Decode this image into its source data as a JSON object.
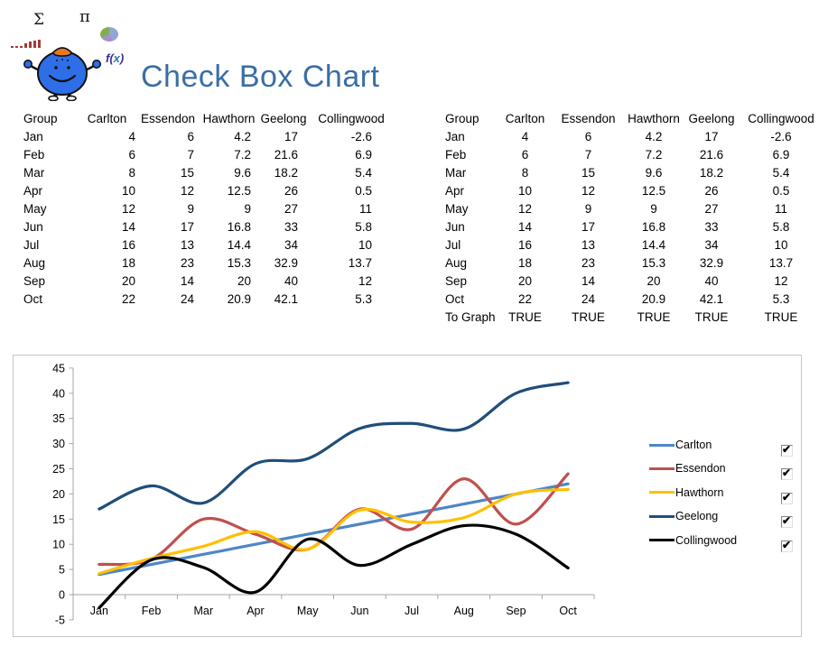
{
  "header": {
    "title": "Check Box Chart"
  },
  "logo": {
    "sigma": "Σ",
    "pi": "π",
    "fx_prefix": "f(",
    "fx_x": "x",
    "fx_suffix": ")"
  },
  "icons": {
    "checkbox_checked_glyph": "✔"
  },
  "tables": {
    "columns": [
      "Group",
      "Carlton",
      "Essendon",
      "Hawthorn",
      "Geelong",
      "Collingwood"
    ],
    "rows": [
      [
        "Jan",
        "4",
        "6",
        "4.2",
        "17",
        "-2.6"
      ],
      [
        "Feb",
        "6",
        "7",
        "7.2",
        "21.6",
        "6.9"
      ],
      [
        "Mar",
        "8",
        "15",
        "9.6",
        "18.2",
        "5.4"
      ],
      [
        "Apr",
        "10",
        "12",
        "12.5",
        "26",
        "0.5"
      ],
      [
        "May",
        "12",
        "9",
        "9",
        "27",
        "11"
      ],
      [
        "Jun",
        "14",
        "17",
        "16.8",
        "33",
        "5.8"
      ],
      [
        "Jul",
        "16",
        "13",
        "14.4",
        "34",
        "10"
      ],
      [
        "Aug",
        "18",
        "23",
        "15.3",
        "32.9",
        "13.7"
      ],
      [
        "Sep",
        "20",
        "14",
        "20",
        "40",
        "12"
      ],
      [
        "Oct",
        "22",
        "24",
        "20.9",
        "42.1",
        "5.3"
      ]
    ],
    "right_extra_row": {
      "label": "To Graph",
      "values": [
        "TRUE",
        "TRUE",
        "TRUE",
        "TRUE",
        "TRUE"
      ]
    }
  },
  "chart_data": {
    "type": "line",
    "smooth": true,
    "x": [
      "Jan",
      "Feb",
      "Mar",
      "Apr",
      "May",
      "Jun",
      "Jul",
      "Aug",
      "Sep",
      "Oct"
    ],
    "series": [
      {
        "name": "Carlton",
        "color": "#4e86c6",
        "checked": true,
        "values": [
          4,
          6,
          8,
          10,
          12,
          14,
          16,
          18,
          20,
          22
        ]
      },
      {
        "name": "Essendon",
        "color": "#c0504d",
        "checked": true,
        "values": [
          6,
          7,
          15,
          12,
          9,
          17,
          13,
          23,
          14,
          24
        ]
      },
      {
        "name": "Hawthorn",
        "color": "#ffc000",
        "checked": true,
        "values": [
          4.2,
          7.2,
          9.6,
          12.5,
          9,
          16.8,
          14.4,
          15.3,
          20,
          20.9
        ]
      },
      {
        "name": "Geelong",
        "color": "#1f4e79",
        "checked": true,
        "values": [
          17,
          21.6,
          18.2,
          26,
          27,
          33,
          34,
          32.9,
          40,
          42.1
        ]
      },
      {
        "name": "Collingwood",
        "color": "#000000",
        "checked": true,
        "values": [
          -2.6,
          6.9,
          5.4,
          0.5,
          11,
          5.8,
          10,
          13.7,
          12,
          5.3
        ]
      }
    ],
    "ylim": [
      -5,
      45
    ],
    "yticks": [
      -5,
      0,
      5,
      10,
      15,
      20,
      25,
      30,
      35,
      40,
      45
    ],
    "grid": false,
    "legend_position": "right",
    "axis_color": "#a6a6a6",
    "title": "",
    "xlabel": "",
    "ylabel": ""
  }
}
